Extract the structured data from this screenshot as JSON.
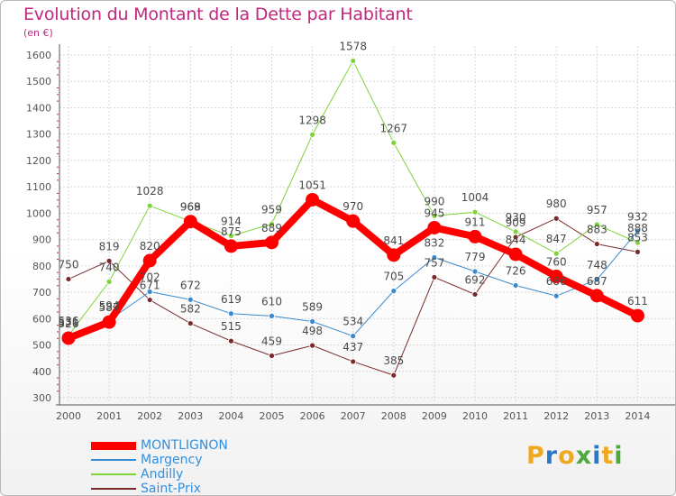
{
  "title": "Evolution du Montant de la Dette par Habitant",
  "subtitle": "(en €)",
  "logo": {
    "text": [
      "P",
      "r",
      "o",
      "x",
      "i",
      "t",
      "i"
    ],
    "colors": [
      "#f0a81e",
      "#2a79c8",
      "#f0a81e",
      "#4fa83d",
      "#2a79c8",
      "#f0a81e",
      "#4fa83d"
    ]
  },
  "chart_data": {
    "type": "line",
    "x": [
      "2000",
      "2001",
      "2002",
      "2003",
      "2004",
      "2005",
      "2006",
      "2007",
      "2008",
      "2009",
      "2010",
      "2011",
      "2012",
      "2013",
      "2014"
    ],
    "ylim": [
      300,
      1600
    ],
    "yticks": [
      "300",
      "400",
      "500",
      "600",
      "700",
      "800",
      "900",
      "1000",
      "1100",
      "1200",
      "1300",
      "1400",
      "1500",
      "1600"
    ],
    "grid": true,
    "legend_position": "bottom-left",
    "series": [
      {
        "name": "MONTLIGNON",
        "color": "#ff0000",
        "width": 8,
        "marker": 7,
        "values": [
          526,
          587,
          820,
          968,
          875,
          889,
          1051,
          970,
          841,
          945,
          911,
          844,
          760,
          687,
          611
        ],
        "labels": [
          "526",
          "587",
          "820",
          "968",
          "875",
          "889",
          "1051",
          "970",
          "841",
          "945",
          "911",
          "844",
          "760",
          "687",
          "611"
        ]
      },
      {
        "name": "Margency",
        "color": "#3a8ad0",
        "width": 1,
        "marker": 3,
        "values": [
          531,
          594,
          702,
          672,
          619,
          610,
          589,
          534,
          705,
          832,
          779,
          726,
          686,
          748,
          932
        ],
        "labels": [
          "531",
          "594",
          "702",
          "672",
          "619",
          "610",
          "589",
          "534",
          "705",
          "832",
          "779",
          "726",
          "686",
          "748",
          "932"
        ]
      },
      {
        "name": "Andilly",
        "color": "#7ed33a",
        "width": 1,
        "marker": 3,
        "values": [
          536,
          740,
          1028,
          969,
          914,
          959,
          1298,
          1578,
          1267,
          990,
          1004,
          930,
          847,
          957,
          888
        ],
        "labels": [
          "536",
          "740",
          "1028",
          "969",
          "914",
          "959",
          "1298",
          "1578",
          "1267",
          "990",
          "1004",
          "930",
          "847",
          "957",
          "888"
        ]
      },
      {
        "name": "Saint-Prix",
        "color": "#7a2a2a",
        "width": 1,
        "marker": 3,
        "values": [
          750,
          819,
          671,
          582,
          515,
          459,
          498,
          437,
          385,
          757,
          692,
          909,
          980,
          883,
          853
        ],
        "labels": [
          "750",
          "819",
          "671",
          "582",
          "515",
          "459",
          "498",
          "437",
          "385",
          "757",
          "692",
          "909",
          "980",
          "883",
          "853"
        ]
      }
    ]
  }
}
